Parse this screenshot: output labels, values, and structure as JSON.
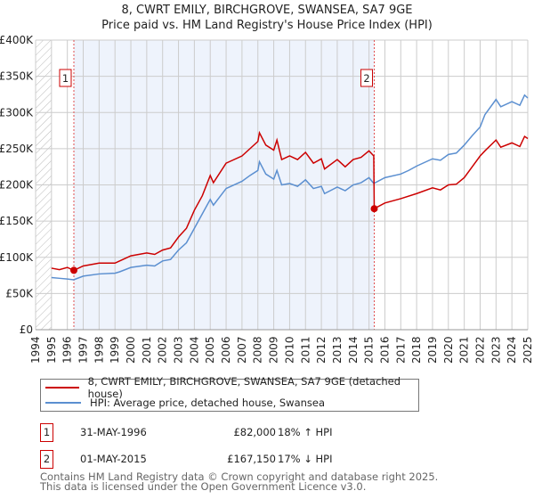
{
  "chart_data": {
    "type": "line",
    "title": "8, CWRT EMILY, BIRCHGROVE, SWANSEA, SA7 9GE",
    "subtitle": "Price paid vs. HM Land Registry's House Price Index (HPI)",
    "xlim": [
      1994,
      2025
    ],
    "ylim": [
      0,
      400000
    ],
    "x_ticks": [
      "1994",
      "1995",
      "1996",
      "1997",
      "1998",
      "1999",
      "2000",
      "2001",
      "2002",
      "2003",
      "2004",
      "2005",
      "2006",
      "2007",
      "2008",
      "2009",
      "2010",
      "2011",
      "2012",
      "2013",
      "2014",
      "2015",
      "2016",
      "2017",
      "2018",
      "2019",
      "2020",
      "2021",
      "2022",
      "2023",
      "2024",
      "2025"
    ],
    "y_ticks": [
      {
        "v": 0,
        "label": "£0"
      },
      {
        "v": 50000,
        "label": "£50K"
      },
      {
        "v": 100000,
        "label": "£100K"
      },
      {
        "v": 150000,
        "label": "£150K"
      },
      {
        "v": 200000,
        "label": "£200K"
      },
      {
        "v": 250000,
        "label": "£250K"
      },
      {
        "v": 300000,
        "label": "£300K"
      },
      {
        "v": 350000,
        "label": "£350K"
      },
      {
        "v": 400000,
        "label": "£400K"
      }
    ],
    "grid": true,
    "series": [
      {
        "name": "8, CWRT EMILY, BIRCHGROVE, SWANSEA, SA7 9GE (detached house)",
        "color": "#cc0000",
        "x": [
          1995,
          1995.5,
          1996,
          1996.4,
          1997,
          1998,
          1999,
          1999.3,
          2000,
          2001,
          2001.5,
          2002,
          2002.5,
          2003,
          2003.5,
          2004,
          2004.5,
          2005,
          2005.2,
          2006,
          2007,
          2007.5,
          2008,
          2008.1,
          2008.5,
          2009,
          2009.2,
          2009.5,
          2010,
          2010.5,
          2011,
          2011.5,
          2012,
          2012.2,
          2013,
          2013.5,
          2014,
          2014.5,
          2015,
          2015.3,
          2015.33,
          2016,
          2017,
          2018,
          2019,
          2019.5,
          2020,
          2020.5,
          2021,
          2021.5,
          2022,
          2022.3,
          2023,
          2023.3,
          2024,
          2024.5,
          2024.8,
          2025
        ],
        "y": [
          85000,
          83000,
          86000,
          82000,
          88000,
          92000,
          92000,
          95000,
          102000,
          106000,
          104000,
          110000,
          113000,
          128000,
          140000,
          165000,
          185000,
          213000,
          203000,
          230000,
          240000,
          250000,
          260000,
          272000,
          255000,
          248000,
          262000,
          235000,
          240000,
          235000,
          245000,
          230000,
          236000,
          222000,
          235000,
          225000,
          235000,
          238000,
          247000,
          240000,
          167150,
          175000,
          181000,
          188000,
          196000,
          193000,
          200000,
          201000,
          210000,
          225000,
          240000,
          247000,
          262000,
          252000,
          258000,
          253000,
          267000,
          264000
        ]
      },
      {
        "name": "HPI: Average price, detached house, Swansea",
        "color": "#5b8fd0",
        "x": [
          1995,
          1995.5,
          1996,
          1996.4,
          1997,
          1998,
          1999,
          1999.3,
          2000,
          2001,
          2001.5,
          2002,
          2002.5,
          2003,
          2003.5,
          2004,
          2004.5,
          2005,
          2005.2,
          2006,
          2007,
          2007.5,
          2008,
          2008.1,
          2008.5,
          2009,
          2009.2,
          2009.5,
          2010,
          2010.5,
          2011,
          2011.5,
          2012,
          2012.2,
          2013,
          2013.5,
          2014,
          2014.5,
          2015,
          2015.3,
          2016,
          2017,
          2017.5,
          2018,
          2019,
          2019.5,
          2020,
          2020.5,
          2021,
          2021.5,
          2022,
          2022.3,
          2023,
          2023.3,
          2024,
          2024.5,
          2024.8,
          2025
        ],
        "y": [
          72000,
          71000,
          70000,
          69000,
          74000,
          77000,
          78000,
          80000,
          86000,
          89000,
          88000,
          95000,
          97000,
          110000,
          120000,
          140000,
          160000,
          180000,
          172000,
          195000,
          205000,
          213000,
          220000,
          232000,
          215000,
          208000,
          220000,
          200000,
          202000,
          198000,
          207000,
          195000,
          198000,
          188000,
          197000,
          192000,
          200000,
          203000,
          210000,
          202000,
          210000,
          215000,
          220000,
          226000,
          236000,
          234000,
          242000,
          244000,
          255000,
          268000,
          280000,
          297000,
          318000,
          308000,
          315000,
          310000,
          324000,
          320000
        ]
      }
    ],
    "annotations": [
      {
        "label": "1",
        "x": 1996.41,
        "y": 82000
      },
      {
        "label": "2",
        "x": 2015.33,
        "y": 167150
      }
    ],
    "shaded_range": [
      1996.41,
      2015.33
    ],
    "legend_placement": "below"
  },
  "legend": {
    "items": [
      {
        "label": "8, CWRT EMILY, BIRCHGROVE, SWANSEA, SA7 9GE (detached house)",
        "color": "#cc0000"
      },
      {
        "label": "HPI: Average price, detached house, Swansea",
        "color": "#5b8fd0"
      }
    ]
  },
  "sales": [
    {
      "num": "1",
      "date": "31-MAY-1996",
      "price": "£82,000",
      "hpi": "18% ↑ HPI"
    },
    {
      "num": "2",
      "date": "01-MAY-2015",
      "price": "£167,150",
      "hpi": "17% ↓ HPI"
    }
  ],
  "footer": {
    "line1": "Contains HM Land Registry data © Crown copyright and database right 2025.",
    "line2": "This data is licensed under the Open Government Licence v3.0."
  }
}
